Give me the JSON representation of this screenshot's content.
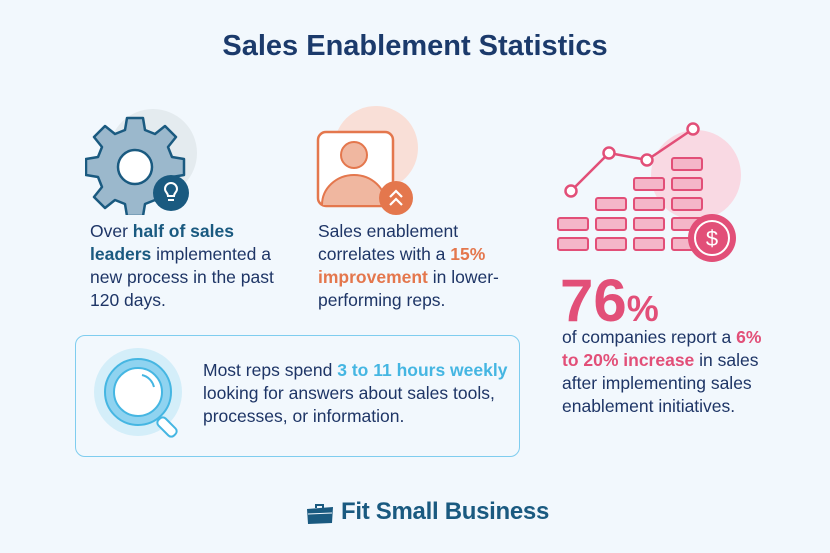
{
  "title": "Sales Enablement Statistics",
  "stat1": {
    "pre": "Over ",
    "bold": "half of sales leaders",
    "post": " implemented a new process in the past 120 days.",
    "icon": "gear-lightbulb-icon"
  },
  "stat2": {
    "pre": "Sales enablement correlates with a ",
    "bold": "15% improvement",
    "post": " in lower-performing reps.",
    "icon": "person-chevron-up-icon"
  },
  "stat3": {
    "pre": "Most reps spend ",
    "bold": "3 to 11 hours weekly",
    "post": " looking for answers about sales tools, processes, or information.",
    "icon": "magnifier-icon"
  },
  "stat4": {
    "number": "76",
    "percent": "%",
    "pre": "of companies report a ",
    "bold": "6% to 20% increase",
    "post": " in sales after implementing sales enablement initiatives.",
    "icon": "growth-chart-dollar-icon"
  },
  "logo": {
    "text": "Fit Small Business",
    "icon": "briefcase-icon"
  },
  "colors": {
    "navy": "#1b3a6b",
    "teal": "#1a5a80",
    "orange": "#e4774d",
    "blue": "#45b6e2",
    "pink": "#e24f78",
    "background": "#f2f8fd"
  }
}
